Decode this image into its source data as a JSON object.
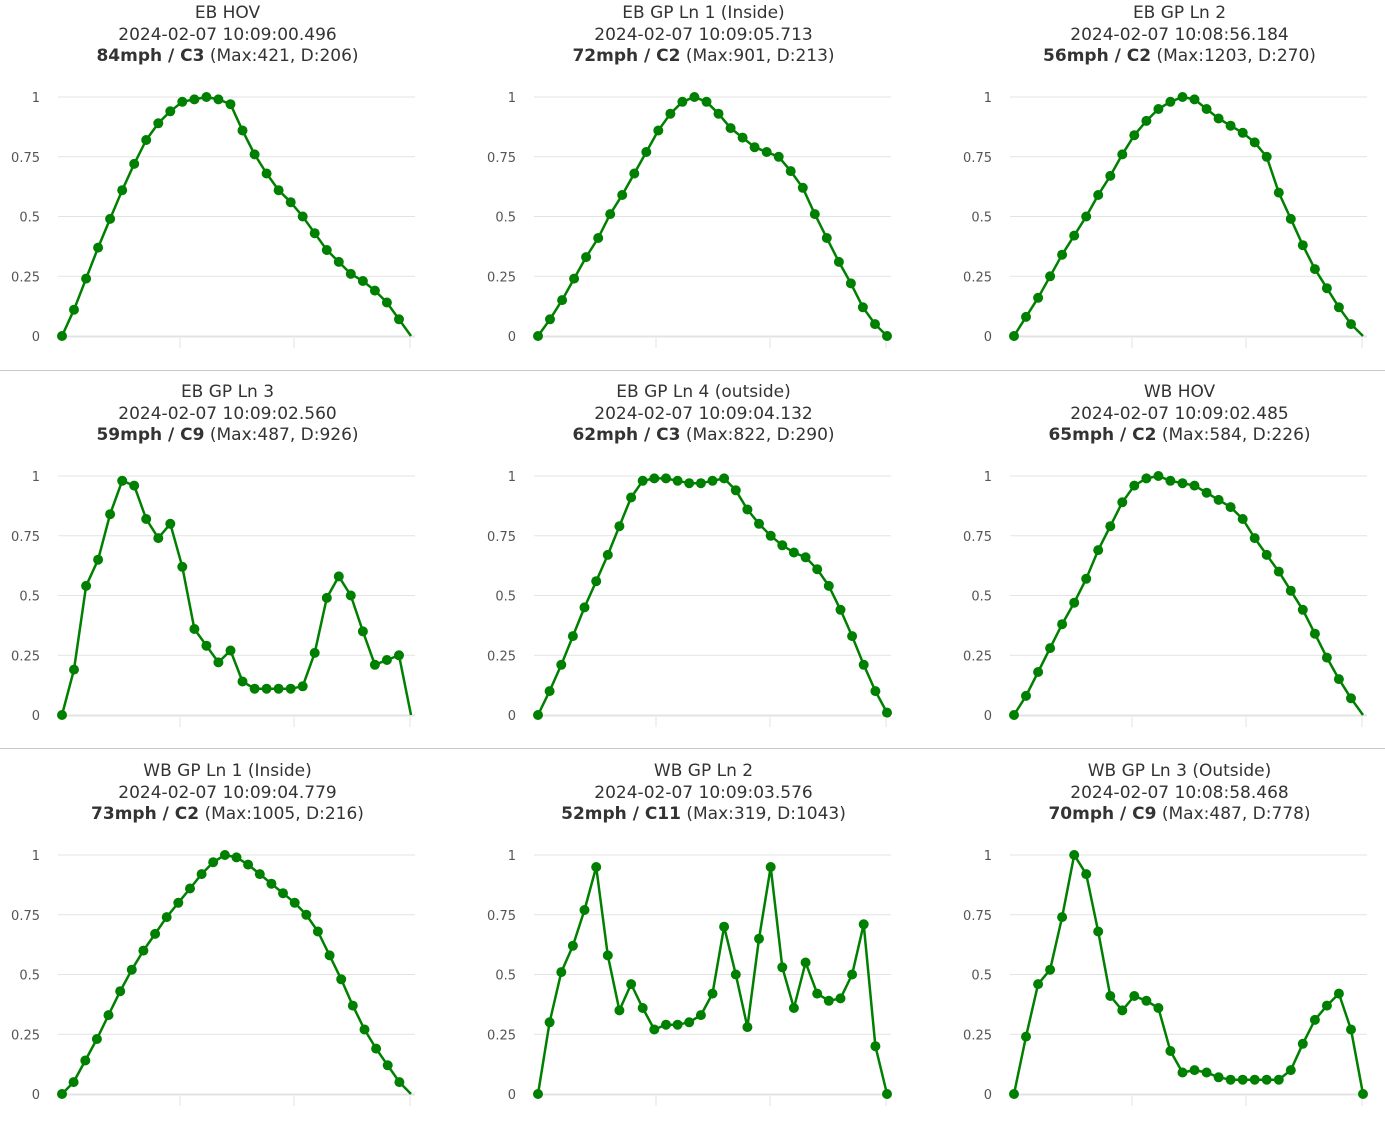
{
  "chart_data": [
    {
      "type": "line",
      "title": "EB HOV",
      "timestamp": "2024-02-07 10:09:00.496",
      "speed": "84mph",
      "cls": "C3",
      "detail": "(Max:421, D:206)",
      "ylim": [
        0,
        1
      ],
      "yticks": [
        "0",
        "0.25",
        "0.5",
        "0.75",
        "1"
      ],
      "grid": true,
      "color": "#008000",
      "values": [
        0.0,
        0.11,
        0.24,
        0.37,
        0.49,
        0.61,
        0.72,
        0.82,
        0.89,
        0.94,
        0.98,
        0.99,
        1.0,
        0.99,
        0.97,
        0.86,
        0.76,
        0.68,
        0.61,
        0.56,
        0.5,
        0.43,
        0.36,
        0.31,
        0.26,
        0.23,
        0.19,
        0.14,
        0.07,
        0.0
      ],
      "last_marker": false
    },
    {
      "type": "line",
      "title": "EB GP Ln 1 (Inside)",
      "timestamp": "2024-02-07 10:09:05.713",
      "speed": "72mph",
      "cls": "C2",
      "detail": "(Max:901, D:213)",
      "ylim": [
        0,
        1
      ],
      "yticks": [
        "0",
        "0.25",
        "0.5",
        "0.75",
        "1"
      ],
      "grid": true,
      "color": "#008000",
      "values": [
        0.0,
        0.07,
        0.15,
        0.24,
        0.33,
        0.41,
        0.51,
        0.59,
        0.68,
        0.77,
        0.86,
        0.93,
        0.98,
        1.0,
        0.98,
        0.93,
        0.87,
        0.83,
        0.79,
        0.77,
        0.75,
        0.69,
        0.62,
        0.51,
        0.41,
        0.31,
        0.22,
        0.12,
        0.05,
        0.0
      ],
      "last_marker": true
    },
    {
      "type": "line",
      "title": "EB GP Ln 2",
      "timestamp": "2024-02-07 10:08:56.184",
      "speed": "56mph",
      "cls": "C2",
      "detail": "(Max:1203, D:270)",
      "ylim": [
        0,
        1
      ],
      "yticks": [
        "0",
        "0.25",
        "0.5",
        "0.75",
        "1"
      ],
      "grid": true,
      "color": "#008000",
      "values": [
        0.0,
        0.08,
        0.16,
        0.25,
        0.34,
        0.42,
        0.5,
        0.59,
        0.67,
        0.76,
        0.84,
        0.9,
        0.95,
        0.98,
        1.0,
        0.99,
        0.95,
        0.91,
        0.88,
        0.85,
        0.81,
        0.75,
        0.6,
        0.49,
        0.38,
        0.28,
        0.2,
        0.12,
        0.05,
        0.0
      ],
      "last_marker": false
    },
    {
      "type": "line",
      "title": "EB GP Ln 3",
      "timestamp": "2024-02-07 10:09:02.560",
      "speed": "59mph",
      "cls": "C9",
      "detail": "(Max:487, D:926)",
      "ylim": [
        0,
        1
      ],
      "yticks": [
        "0",
        "0.25",
        "0.5",
        "0.75",
        "1"
      ],
      "grid": true,
      "color": "#008000",
      "values": [
        0.0,
        0.19,
        0.54,
        0.65,
        0.84,
        0.98,
        0.96,
        0.82,
        0.74,
        0.8,
        0.62,
        0.36,
        0.29,
        0.22,
        0.27,
        0.14,
        0.11,
        0.11,
        0.11,
        0.11,
        0.12,
        0.26,
        0.49,
        0.58,
        0.5,
        0.35,
        0.21,
        0.23,
        0.25,
        0.0
      ],
      "last_marker": false
    },
    {
      "type": "line",
      "title": "EB GP Ln 4 (outside)",
      "timestamp": "2024-02-07 10:09:04.132",
      "speed": "62mph",
      "cls": "C3",
      "detail": "(Max:822, D:290)",
      "ylim": [
        0,
        1
      ],
      "yticks": [
        "0",
        "0.25",
        "0.5",
        "0.75",
        "1"
      ],
      "grid": true,
      "color": "#008000",
      "values": [
        0.0,
        0.1,
        0.21,
        0.33,
        0.45,
        0.56,
        0.67,
        0.79,
        0.91,
        0.98,
        0.99,
        0.99,
        0.98,
        0.97,
        0.97,
        0.98,
        0.99,
        0.94,
        0.86,
        0.8,
        0.75,
        0.71,
        0.68,
        0.66,
        0.61,
        0.54,
        0.44,
        0.33,
        0.21,
        0.1,
        0.01
      ],
      "last_marker": true
    },
    {
      "type": "line",
      "title": "WB HOV",
      "timestamp": "2024-02-07 10:09:02.485",
      "speed": "65mph",
      "cls": "C2",
      "detail": "(Max:584, D:226)",
      "ylim": [
        0,
        1
      ],
      "yticks": [
        "0",
        "0.25",
        "0.5",
        "0.75",
        "1"
      ],
      "grid": true,
      "color": "#008000",
      "values": [
        0.0,
        0.08,
        0.18,
        0.28,
        0.38,
        0.47,
        0.57,
        0.69,
        0.79,
        0.89,
        0.96,
        0.99,
        1.0,
        0.98,
        0.97,
        0.96,
        0.93,
        0.9,
        0.87,
        0.82,
        0.74,
        0.67,
        0.6,
        0.52,
        0.44,
        0.34,
        0.24,
        0.15,
        0.07,
        0.0
      ],
      "last_marker": false
    },
    {
      "type": "line",
      "title": "WB GP Ln 1 (Inside)",
      "timestamp": "2024-02-07 10:09:04.779",
      "speed": "73mph",
      "cls": "C2",
      "detail": "(Max:1005, D:216)",
      "ylim": [
        0,
        1
      ],
      "yticks": [
        "0",
        "0.25",
        "0.5",
        "0.75",
        "1"
      ],
      "grid": true,
      "color": "#008000",
      "values": [
        0.0,
        0.05,
        0.14,
        0.23,
        0.33,
        0.43,
        0.52,
        0.6,
        0.67,
        0.74,
        0.8,
        0.86,
        0.92,
        0.97,
        1.0,
        0.99,
        0.96,
        0.92,
        0.88,
        0.84,
        0.8,
        0.75,
        0.68,
        0.58,
        0.48,
        0.37,
        0.27,
        0.19,
        0.12,
        0.05,
        0.0
      ],
      "last_marker": false
    },
    {
      "type": "line",
      "title": "WB GP Ln 2",
      "timestamp": "2024-02-07 10:09:03.576",
      "speed": "52mph",
      "cls": "C11",
      "detail": "(Max:319, D:1043)",
      "ylim": [
        0,
        1
      ],
      "yticks": [
        "0",
        "0.25",
        "0.5",
        "0.75",
        "1"
      ],
      "grid": true,
      "color": "#008000",
      "values": [
        0.0,
        0.3,
        0.51,
        0.62,
        0.77,
        0.95,
        0.58,
        0.35,
        0.46,
        0.36,
        0.27,
        0.29,
        0.29,
        0.3,
        0.33,
        0.42,
        0.7,
        0.5,
        0.28,
        0.65,
        0.95,
        0.53,
        0.36,
        0.55,
        0.42,
        0.39,
        0.4,
        0.5,
        0.71,
        0.2,
        0.0
      ],
      "last_marker": true
    },
    {
      "type": "line",
      "title": "WB GP Ln 3 (Outside)",
      "timestamp": "2024-02-07 10:08:58.468",
      "speed": "70mph",
      "cls": "C9",
      "detail": "(Max:487, D:778)",
      "ylim": [
        0,
        1
      ],
      "yticks": [
        "0",
        "0.25",
        "0.5",
        "0.75",
        "1"
      ],
      "grid": true,
      "color": "#008000",
      "values": [
        0.0,
        0.24,
        0.46,
        0.52,
        0.74,
        1.0,
        0.92,
        0.68,
        0.41,
        0.35,
        0.41,
        0.39,
        0.36,
        0.18,
        0.09,
        0.1,
        0.09,
        0.07,
        0.06,
        0.06,
        0.06,
        0.06,
        0.06,
        0.1,
        0.21,
        0.31,
        0.37,
        0.42,
        0.27,
        0.0
      ],
      "last_marker": true
    }
  ]
}
